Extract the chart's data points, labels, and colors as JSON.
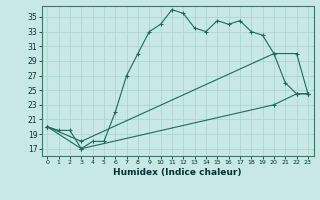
{
  "xlabel": "Humidex (Indice chaleur)",
  "bg_color": "#c8e8e8",
  "grid_color": "#b0d4d4",
  "line_color": "#1a6b5a",
  "xlim": [
    -0.5,
    23.5
  ],
  "ylim": [
    16,
    36.5
  ],
  "xticks": [
    0,
    1,
    2,
    3,
    4,
    5,
    6,
    7,
    8,
    9,
    10,
    11,
    12,
    13,
    14,
    15,
    16,
    17,
    18,
    19,
    20,
    21,
    22,
    23
  ],
  "yticks": [
    17,
    19,
    21,
    23,
    25,
    27,
    29,
    31,
    33,
    35
  ],
  "series": {
    "line1": {
      "x": [
        0,
        1,
        2,
        3,
        4,
        5,
        6,
        7,
        8,
        9,
        10,
        11,
        12,
        13,
        14,
        15,
        16,
        17,
        18,
        19,
        20,
        21,
        22,
        23
      ],
      "y": [
        20,
        19.5,
        19.5,
        17,
        18,
        18,
        22,
        27,
        30,
        33,
        34,
        36,
        35.5,
        33.5,
        33,
        34.5,
        34,
        34.5,
        33,
        32.5,
        30,
        26,
        24.5,
        24.5
      ]
    },
    "line2": {
      "x": [
        0,
        3,
        20,
        22,
        23
      ],
      "y": [
        20,
        17,
        23,
        24.5,
        24.5
      ]
    },
    "line3": {
      "x": [
        0,
        3,
        20,
        22,
        23
      ],
      "y": [
        20,
        18,
        30,
        30,
        24.5
      ]
    }
  }
}
